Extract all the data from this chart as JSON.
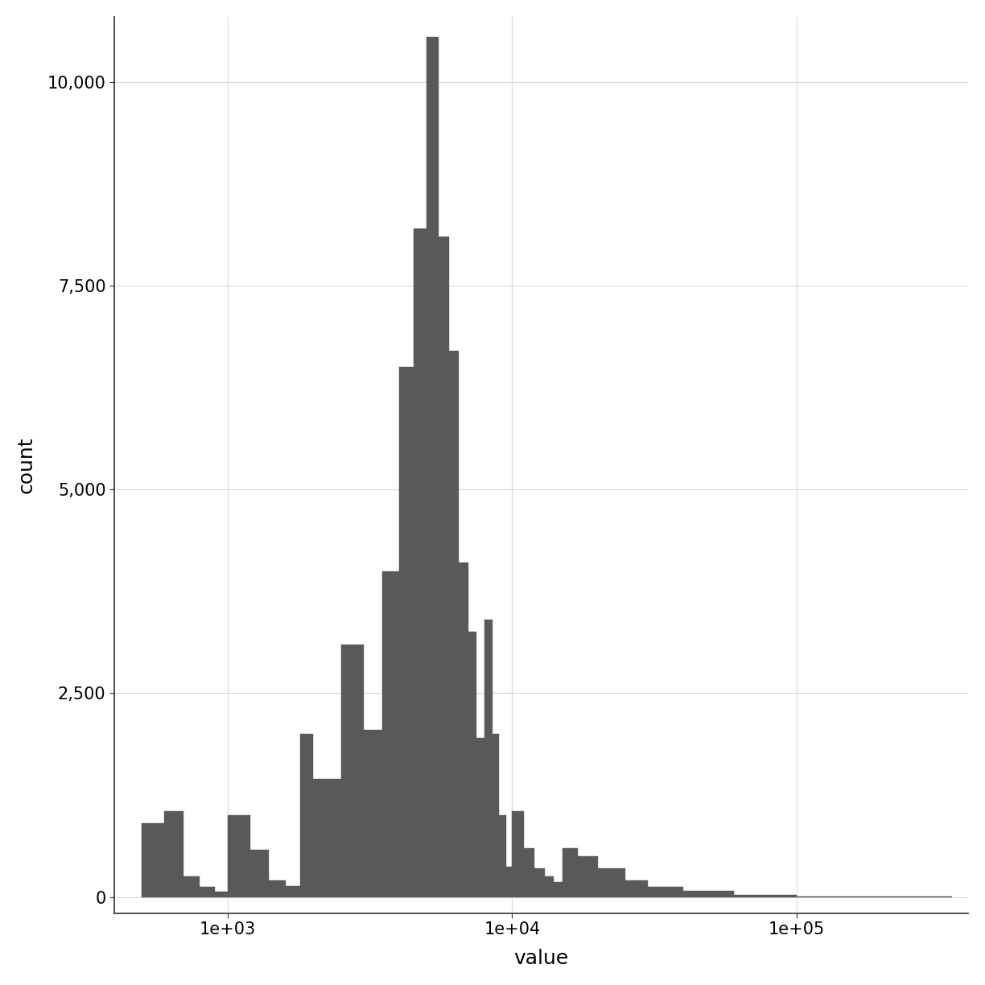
{
  "title": "",
  "xlabel": "value",
  "ylabel": "count",
  "bar_color": "#595959",
  "bar_edgecolor": "#595959",
  "background_color": "#ffffff",
  "panel_background": "#ffffff",
  "grid_color": "#d9d9d9",
  "xlim": [
    400,
    400000
  ],
  "ylim": [
    -200,
    10800
  ],
  "yticks": [
    0,
    2500,
    5000,
    7500,
    10000
  ],
  "xtick_positions": [
    1000,
    10000,
    100000
  ],
  "bin_edges": [
    500,
    600,
    700,
    800,
    900,
    1000,
    1200,
    1400,
    1600,
    1800,
    2000,
    2500,
    3000,
    3500,
    4000,
    4500,
    5000,
    5500,
    6000,
    6500,
    7000,
    7500,
    8000,
    8500,
    9000,
    9500,
    10000,
    11000,
    12000,
    13000,
    14000,
    15000,
    17000,
    20000,
    25000,
    30000,
    40000,
    60000,
    100000,
    200000,
    350000
  ],
  "counts": [
    900,
    1050,
    250,
    120,
    70,
    1000,
    580,
    200,
    130,
    2000,
    1450,
    3100,
    2050,
    4000,
    6500,
    8200,
    10550,
    8100,
    6700,
    4100,
    3250,
    1950,
    3400,
    2000,
    1000,
    370,
    1050,
    600,
    350,
    250,
    180,
    600,
    500,
    350,
    200,
    120,
    80,
    30,
    10,
    5
  ]
}
